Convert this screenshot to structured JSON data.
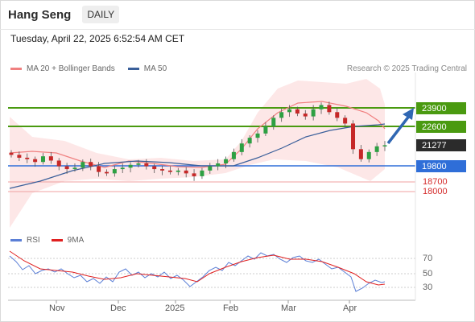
{
  "header": {
    "title": "Hang Seng",
    "timeframe": "DAILY"
  },
  "datetime": "Tuesday, April 22, 2025 6:52:54 AM CET",
  "legend": {
    "ma20_label": "MA 20 + Bollinger Bands",
    "ma50_label": "MA 50",
    "ma20_color": "#f08080",
    "ma50_color": "#3a5f9a",
    "credit": "Research © 2025 Trading Central"
  },
  "levels": {
    "r2": {
      "label": "23900",
      "color": "#4a9a10"
    },
    "r1": {
      "label": "22600",
      "color": "#4a9a10"
    },
    "last": {
      "label": "21277",
      "color": "#2b2b2b"
    },
    "s1": {
      "label": "19800",
      "color": "#2f6ed8"
    },
    "s2": {
      "label": "18700",
      "color": "#d42a2a"
    },
    "s3": {
      "label": "18000",
      "color": "#d42a2a"
    }
  },
  "rsi_legend": {
    "rsi_label": "RSI",
    "ma_label": "9MA",
    "rsi_color": "#5b7fd6",
    "ma_color": "#e02020"
  },
  "rsi_axis": [
    "70",
    "50",
    "30"
  ],
  "x_axis": [
    "Nov",
    "Dec",
    "2025",
    "Feb",
    "Mar",
    "Apr"
  ],
  "chart_data": {
    "type": "candlestick",
    "instrument": "Hang Seng",
    "timeframe": "DAILY",
    "key_levels": [
      23900,
      22600,
      21277,
      19800,
      18700,
      18000
    ],
    "rsi_levels": [
      70,
      50,
      30
    ],
    "x_labels": [
      "Nov",
      "Dec",
      "2025",
      "Feb",
      "Mar",
      "Apr"
    ],
    "close_approx": [
      20600,
      20400,
      20300,
      20100,
      20500,
      20200,
      19800,
      19600,
      19700,
      20100,
      19800,
      19400,
      19300,
      19600,
      19700,
      19900,
      20000,
      19800,
      19600,
      19500,
      19400,
      19500,
      19300,
      19100,
      19500,
      19800,
      20000,
      20300,
      20800,
      21400,
      21800,
      22100,
      22600,
      23200,
      23600,
      23800,
      23500,
      23300,
      23800,
      24100,
      23600,
      23200,
      22800,
      21000,
      20300,
      20800,
      21200,
      21277
    ]
  }
}
